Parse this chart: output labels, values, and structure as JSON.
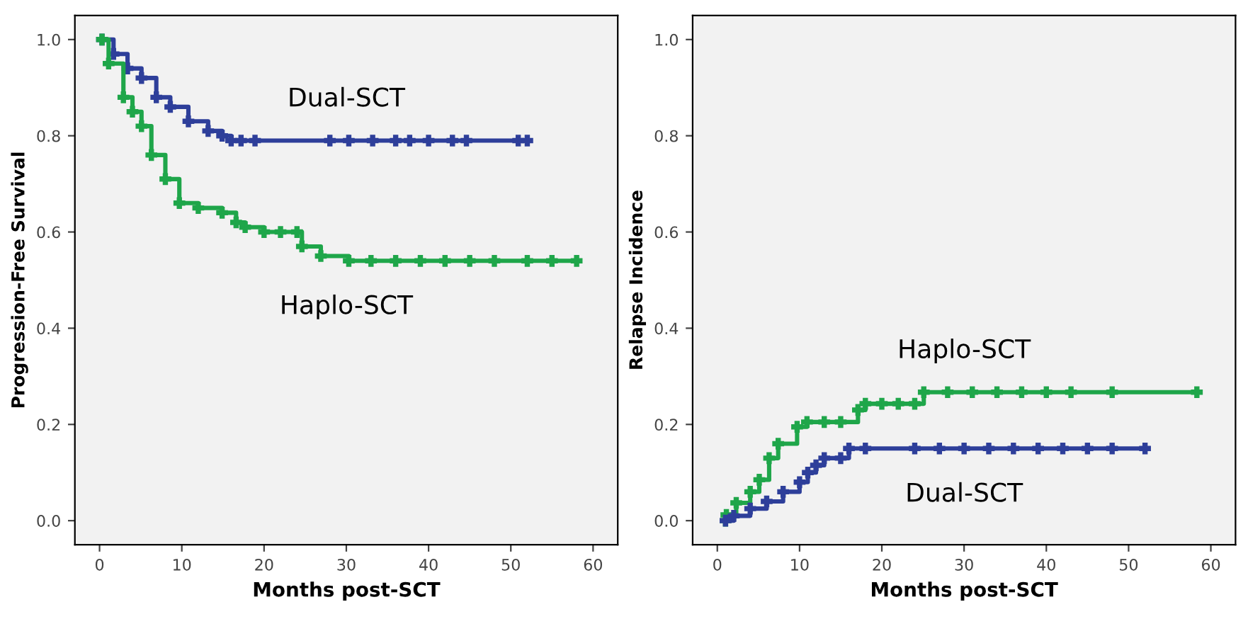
{
  "chart_data": [
    {
      "type": "step",
      "xlabel": "Months post-SCT",
      "ylabel": "Progression-Free Survival",
      "xlim": [
        -3,
        63
      ],
      "ylim": [
        -0.05,
        1.05
      ],
      "xticks": [
        0,
        10,
        20,
        30,
        40,
        50,
        60
      ],
      "yticks": [
        {
          "value": 0,
          "label": "0.0"
        },
        {
          "value": 0.2,
          "label": "0.2"
        },
        {
          "value": 0.4,
          "label": "0.4"
        },
        {
          "value": 0.6,
          "label": "0.6"
        },
        {
          "value": 0.8,
          "label": "0.8"
        },
        {
          "value": 1,
          "label": "1.0"
        }
      ],
      "grid": false,
      "legend": false,
      "marker": "cross",
      "series": [
        {
          "name": "Dual-SCT",
          "color": "#2e3f9a",
          "x": [
            0.3,
            1.7,
            3.4,
            5.1,
            6.9,
            8.6,
            10.8,
            13.2,
            14.9,
            16,
            17.2,
            18.9,
            28,
            30.3,
            33.2,
            36,
            37.7,
            40,
            42.9,
            44.6,
            50.9,
            52
          ],
          "values": [
            1,
            0.97,
            0.94,
            0.92,
            0.88,
            0.86,
            0.83,
            0.81,
            0.8,
            0.79,
            0.79,
            0.79,
            0.79,
            0.79,
            0.79,
            0.79,
            0.79,
            0.79,
            0.79,
            0.79,
            0.79,
            0.79
          ]
        },
        {
          "name": "Haplo-SCT",
          "color": "#1fa64a",
          "x": [
            0.3,
            1.1,
            2.9,
            4,
            5.1,
            6.3,
            8,
            9.7,
            12,
            14.9,
            16.6,
            17.7,
            20,
            22,
            24,
            24.6,
            26.9,
            30.3,
            33,
            36,
            39,
            42,
            45,
            48,
            52,
            55,
            58
          ],
          "values": [
            1,
            0.95,
            0.88,
            0.85,
            0.82,
            0.76,
            0.71,
            0.66,
            0.65,
            0.64,
            0.62,
            0.61,
            0.6,
            0.6,
            0.6,
            0.57,
            0.55,
            0.54,
            0.54,
            0.54,
            0.54,
            0.54,
            0.54,
            0.54,
            0.54,
            0.54,
            0.54
          ]
        }
      ]
    },
    {
      "type": "step",
      "xlabel": "Months post-SCT",
      "ylabel": "Relapse Incidence",
      "xlim": [
        -3,
        63
      ],
      "ylim": [
        -0.05,
        1.05
      ],
      "xticks": [
        0,
        10,
        20,
        30,
        40,
        50,
        60
      ],
      "yticks": [
        {
          "value": 0,
          "label": "0.0"
        },
        {
          "value": 0.2,
          "label": "0.2"
        },
        {
          "value": 0.4,
          "label": "0.4"
        },
        {
          "value": 0.6,
          "label": "0.6"
        },
        {
          "value": 0.8,
          "label": "0.8"
        },
        {
          "value": 1,
          "label": "1.0"
        }
      ],
      "grid": false,
      "legend": false,
      "marker": "cross",
      "series": [
        {
          "name": "Haplo-SCT",
          "color": "#1fa64a",
          "x": [
            1,
            1.1,
            2.3,
            4,
            5.1,
            6.3,
            7.4,
            9.7,
            10.9,
            13,
            15,
            17.1,
            18,
            20,
            22,
            24,
            25.1,
            28,
            31,
            34,
            37,
            40,
            43,
            48,
            58.3
          ],
          "values": [
            0,
            0.012,
            0.037,
            0.06,
            0.085,
            0.13,
            0.16,
            0.195,
            0.205,
            0.205,
            0.205,
            0.23,
            0.243,
            0.243,
            0.243,
            0.243,
            0.267,
            0.267,
            0.267,
            0.267,
            0.267,
            0.267,
            0.267,
            0.267,
            0.267
          ]
        },
        {
          "name": "Dual-SCT",
          "color": "#2e3f9a",
          "x": [
            1,
            2,
            4,
            6,
            8,
            10,
            11,
            12,
            13,
            15,
            16,
            18,
            24,
            27,
            30,
            33,
            36,
            39,
            42,
            45,
            48,
            52
          ],
          "values": [
            0,
            0.01,
            0.025,
            0.04,
            0.06,
            0.08,
            0.1,
            0.115,
            0.13,
            0.13,
            0.15,
            0.15,
            0.15,
            0.15,
            0.15,
            0.15,
            0.15,
            0.15,
            0.15,
            0.15,
            0.15,
            0.15
          ]
        }
      ]
    }
  ]
}
